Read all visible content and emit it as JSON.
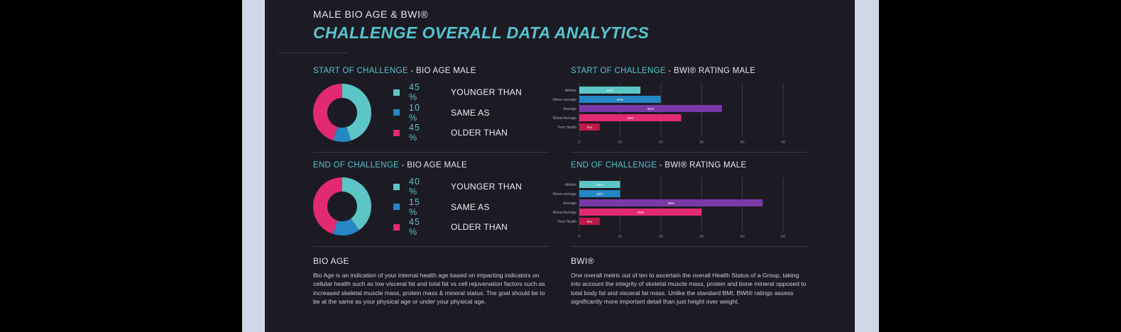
{
  "header": {
    "kicker": "MALE BIO AGE & BWI®",
    "title": "CHALLENGE OVERALL DATA ANALYTICS"
  },
  "colors": {
    "teal": "#5cc6c6",
    "blue": "#2587c4",
    "pink": "#e12a6f",
    "purple": "#7a3aa5",
    "accent": "#57c4cf",
    "bar_crimson": "#c01a4a"
  },
  "bio_age_start": {
    "title_accent": "START OF CHALLENGE",
    "title_rest": " - BIO AGE MALE",
    "items": [
      {
        "pct": "45 %",
        "label": "YOUNGER THAN",
        "color": "#5cc6c6"
      },
      {
        "pct": "10 %",
        "label": "SAME AS",
        "color": "#2587c4"
      },
      {
        "pct": "45 %",
        "label": "OLDER THAN",
        "color": "#e12a6f"
      }
    ]
  },
  "bio_age_end": {
    "title_accent": "END OF CHALLENGE",
    "title_rest": " - BIO AGE MALE",
    "items": [
      {
        "pct": "40 %",
        "label": "YOUNGER THAN",
        "color": "#5cc6c6"
      },
      {
        "pct": "15 %",
        "label": "SAME AS",
        "color": "#2587c4"
      },
      {
        "pct": "45 %",
        "label": "OLDER THAN",
        "color": "#e12a6f"
      }
    ]
  },
  "bwi_start": {
    "title_accent": "START OF CHALLENGE",
    "title_rest": " - BWI® RATING MALE"
  },
  "bwi_end": {
    "title_accent": "END OF CHALLENGE",
    "title_rest": " - BWI® RATING MALE"
  },
  "bio_age_text": {
    "title": "BIO AGE",
    "body": "Bio Age is an indication of your internal health age based on impacting indicators on cellular health such as low visceral fat and total fat vs cell rejuvenation factors such as increased skeletal muscle mass, protein mass & mineral status. The goal should be to be at the same as your physical age or under your physical age."
  },
  "bwi_text": {
    "title": "BWI®",
    "body": "One overall metric out of ten to ascertain the overall Health Status of a Group, taking into account the integrity of skeletal muscle mass, protein and bone mineral opposed to total body fat and visceral fat mass. Unlike the standard BMI, BWI® ratings assess significantly more important detail than just height over weight."
  },
  "chart_data": [
    {
      "type": "pie",
      "title": "START OF CHALLENGE - BIO AGE MALE",
      "labels": [
        "YOUNGER THAN",
        "SAME AS",
        "OLDER THAN"
      ],
      "values": [
        45,
        10,
        45
      ],
      "colors": [
        "#5cc6c6",
        "#2587c4",
        "#e12a6f"
      ]
    },
    {
      "type": "pie",
      "title": "END OF CHALLENGE - BIO AGE MALE",
      "labels": [
        "YOUNGER THAN",
        "SAME AS",
        "OLDER THAN"
      ],
      "values": [
        40,
        15,
        45
      ],
      "colors": [
        "#5cc6c6",
        "#2587c4",
        "#e12a6f"
      ]
    },
    {
      "type": "bar",
      "orientation": "horizontal",
      "title": "START OF CHALLENGE - BWI® RATING MALE",
      "categories": [
        "Athletic",
        "Above average",
        "Average",
        "Below Average",
        "Poor Health"
      ],
      "values": [
        15,
        20,
        35,
        25,
        5
      ],
      "bar_labels": [
        "15%",
        "20%",
        "35%",
        "25%",
        "5%"
      ],
      "colors": [
        "#5cc6c6",
        "#2587c4",
        "#7a3aa5",
        "#e12a6f",
        "#c01a4a"
      ],
      "xticks": [
        0,
        10,
        20,
        30,
        40,
        50
      ],
      "xlim": [
        0,
        50
      ]
    },
    {
      "type": "bar",
      "orientation": "horizontal",
      "title": "END OF CHALLENGE - BWI® RATING MALE",
      "categories": [
        "Athletic",
        "Above average",
        "Average",
        "Below Average",
        "Poor Health"
      ],
      "values": [
        10,
        10,
        45,
        30,
        5
      ],
      "bar_labels": [
        "10%",
        "10%",
        "45%",
        "30%",
        "5%"
      ],
      "colors": [
        "#5cc6c6",
        "#2587c4",
        "#7a3aa5",
        "#e12a6f",
        "#c01a4a"
      ],
      "xticks": [
        0,
        10,
        20,
        30,
        40,
        50
      ],
      "xlim": [
        0,
        50
      ]
    }
  ]
}
